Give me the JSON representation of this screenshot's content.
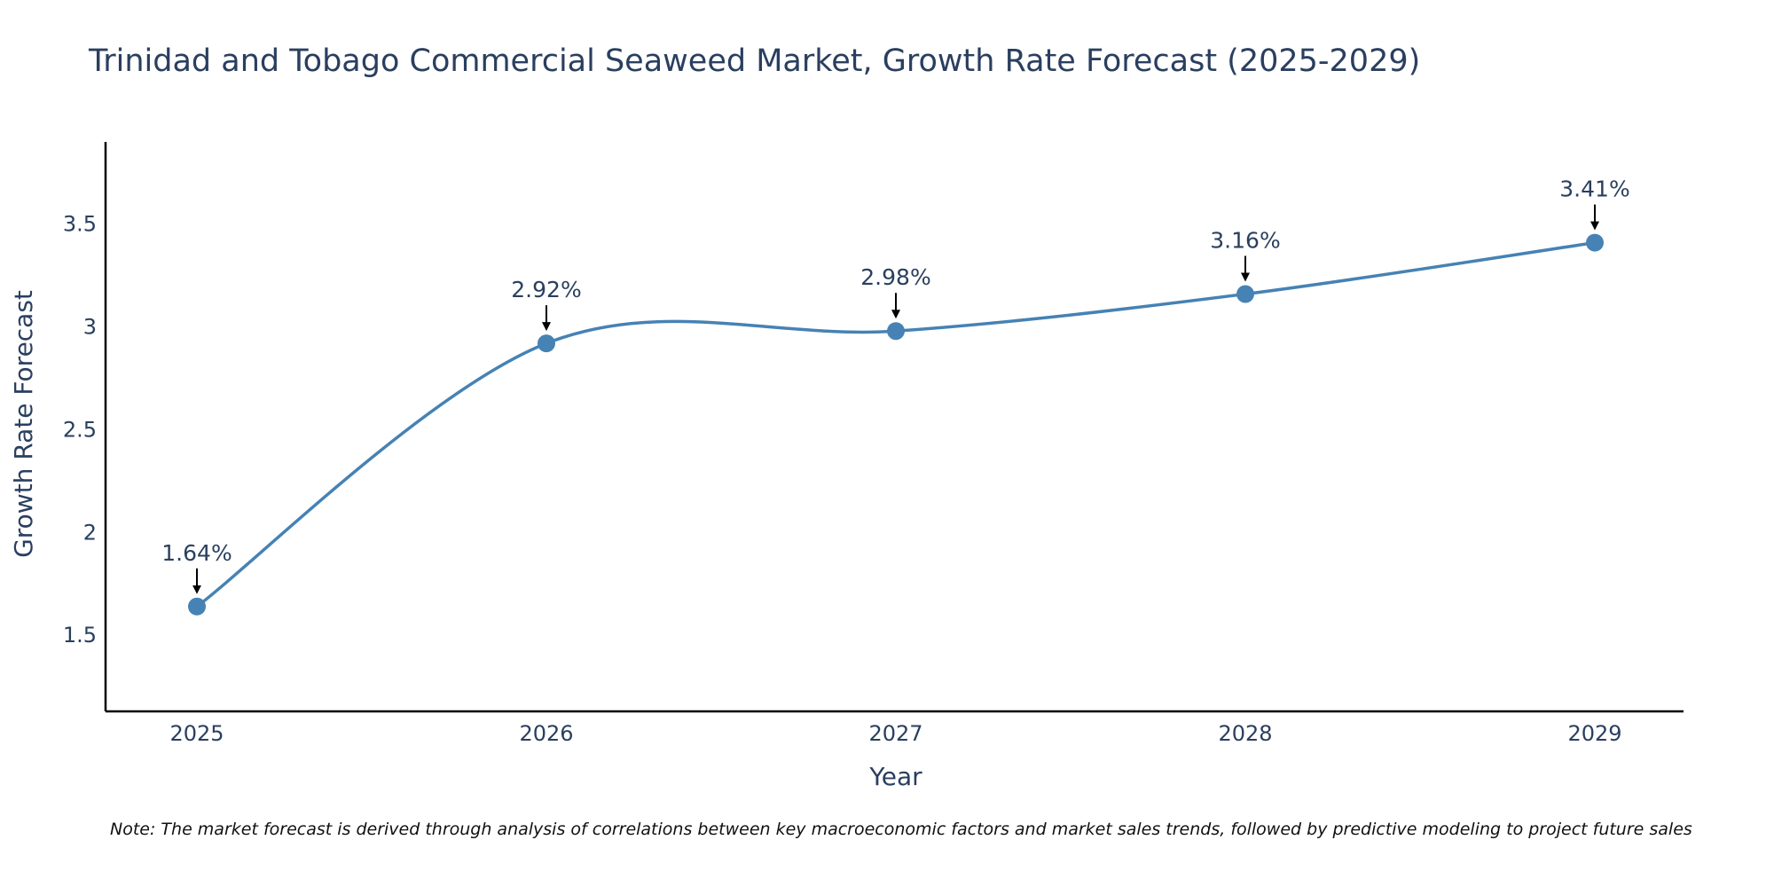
{
  "colors": {
    "line": "#4682b4",
    "marker": "#4682b4",
    "axis": "#000000",
    "arrow": "#000000",
    "text": "#2a3f5f"
  },
  "chart_data": {
    "type": "line",
    "title": "Trinidad and Tobago Commercial Seaweed Market, Growth Rate Forecast (2025-2029)",
    "xlabel": "Year",
    "ylabel": "Growth Rate Forecast",
    "x": [
      "2025",
      "2026",
      "2027",
      "2028",
      "2029"
    ],
    "values": [
      1.64,
      2.92,
      2.98,
      3.16,
      3.41
    ],
    "labels": [
      "1.64%",
      "2.92%",
      "2.98%",
      "3.16%",
      "3.41%"
    ],
    "y_ticks": [
      1.5,
      2,
      2.5,
      3,
      3.5
    ],
    "y_tick_labels": [
      "1.5",
      "2",
      "2.5",
      "3",
      "3.5"
    ],
    "ylim": [
      1.13,
      3.9
    ],
    "grid": false,
    "line_shape": "spline",
    "note": "Note: The market forecast is derived through analysis of correlations between key macroeconomic factors and market sales trends, followed by predictive modeling to project future sales"
  }
}
